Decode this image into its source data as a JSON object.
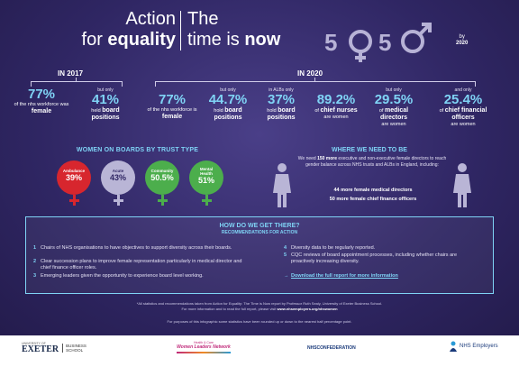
{
  "title": {
    "left_line1": "Action",
    "left_line2_pre": "for ",
    "left_line2_bold": "equality",
    "right_line1": "The",
    "right_line2_pre": "time is ",
    "right_line2_bold": "now"
  },
  "badge": {
    "fifty_a": "50",
    "fifty_b": "50",
    "by": "by",
    "year": "2020"
  },
  "years": {
    "y2017": "IN 2017",
    "y2020": "IN 2020"
  },
  "stats": [
    {
      "pre": "",
      "pct": "77%",
      "desc_pre": "of the nhs workforce was",
      "desc_bold": "female"
    },
    {
      "pre": "but only",
      "pct": "41%",
      "desc_pre": "held",
      "desc_bold": "board positions"
    },
    {
      "pre": "",
      "pct": "77%",
      "desc_pre": "of the nhs workforce is",
      "desc_bold": "female"
    },
    {
      "pre": "but only",
      "pct": "44.7%",
      "desc_pre": "hold",
      "desc_bold": "board positions"
    },
    {
      "pre": "in ALBs only",
      "pct": "37%",
      "desc_pre": "hold",
      "desc_bold": "board positions"
    },
    {
      "pre": "",
      "pct": "89.2%",
      "desc_pre": "of",
      "desc_bold": "chief nurses",
      "desc_post": "are women"
    },
    {
      "pre": "but only",
      "pct": "29.5%",
      "desc_pre": "of",
      "desc_bold": "medical directors",
      "desc_post": "are women"
    },
    {
      "pre": "and only",
      "pct": "25.4%",
      "desc_pre": "of",
      "desc_bold": "chief financial officers",
      "desc_post": "are women"
    }
  ],
  "women_on_boards": {
    "title": "WOMEN ON BOARDS BY TRUST TYPE",
    "items": [
      {
        "label": "Ambulance",
        "value": "39%",
        "color": "#d7262e"
      },
      {
        "label": "Acute",
        "value": "43%",
        "color": "#b9b5d6"
      },
      {
        "label": "Community",
        "value": "50.5%",
        "color": "#4cae4c"
      },
      {
        "label": "Mental Health",
        "value": "51%",
        "color": "#4cae4c"
      }
    ]
  },
  "where_we_need": {
    "title": "WHERE WE NEED TO BE",
    "text_pre": "We need ",
    "text_bold": "150 more",
    "text_post": " executive and non-executive female directors to reach gender balance across NHS trusts and ALBs in England, including:",
    "line1": "44 more female medical directors",
    "line2": "50 more female chief finance officers"
  },
  "how": {
    "title": "HOW DO WE GET THERE?",
    "subtitle": "RECOMMENDATIONS FOR ACTION",
    "recs": [
      {
        "n": "1",
        "text": "Chairs of NHS organisations to have objectives to support diversity across their boards."
      },
      {
        "n": "2",
        "text": "Clear succession plans to improve female representation particularly in medical director and chief finance officer roles."
      },
      {
        "n": "3",
        "text": "Emerging leaders given the opportunity to experience board level working."
      },
      {
        "n": "4",
        "text": "Diversity data to be regularly reported."
      },
      {
        "n": "5",
        "text": "CQC reviews of board appointment processes, including whether chairs are proactively increasing diversity."
      }
    ],
    "download": "Download the full report for more information"
  },
  "notes": {
    "line1": "*All statistics and recommendations taken from Action for Equality: The Time is Now report by Professor Ruth Sealy, University of Exeter Business School.",
    "line2_pre": "For more information and to read the full report, please visit ",
    "line2_link": "www.nhsemployers.org/nhswomen",
    "line3": "For purposes of this infographic some statistics have been rounded up or down to the nearest half percentage point."
  },
  "logos": {
    "exeter_small": "UNIVERSITY OF",
    "exeter": "EXETER",
    "business": "BUSINESS",
    "school": "SCHOOL",
    "wln_small": "Health & Care",
    "wln": "Women Leaders Network",
    "confed": "NHSCONFEDERATION",
    "employers": "NHS Employers"
  }
}
